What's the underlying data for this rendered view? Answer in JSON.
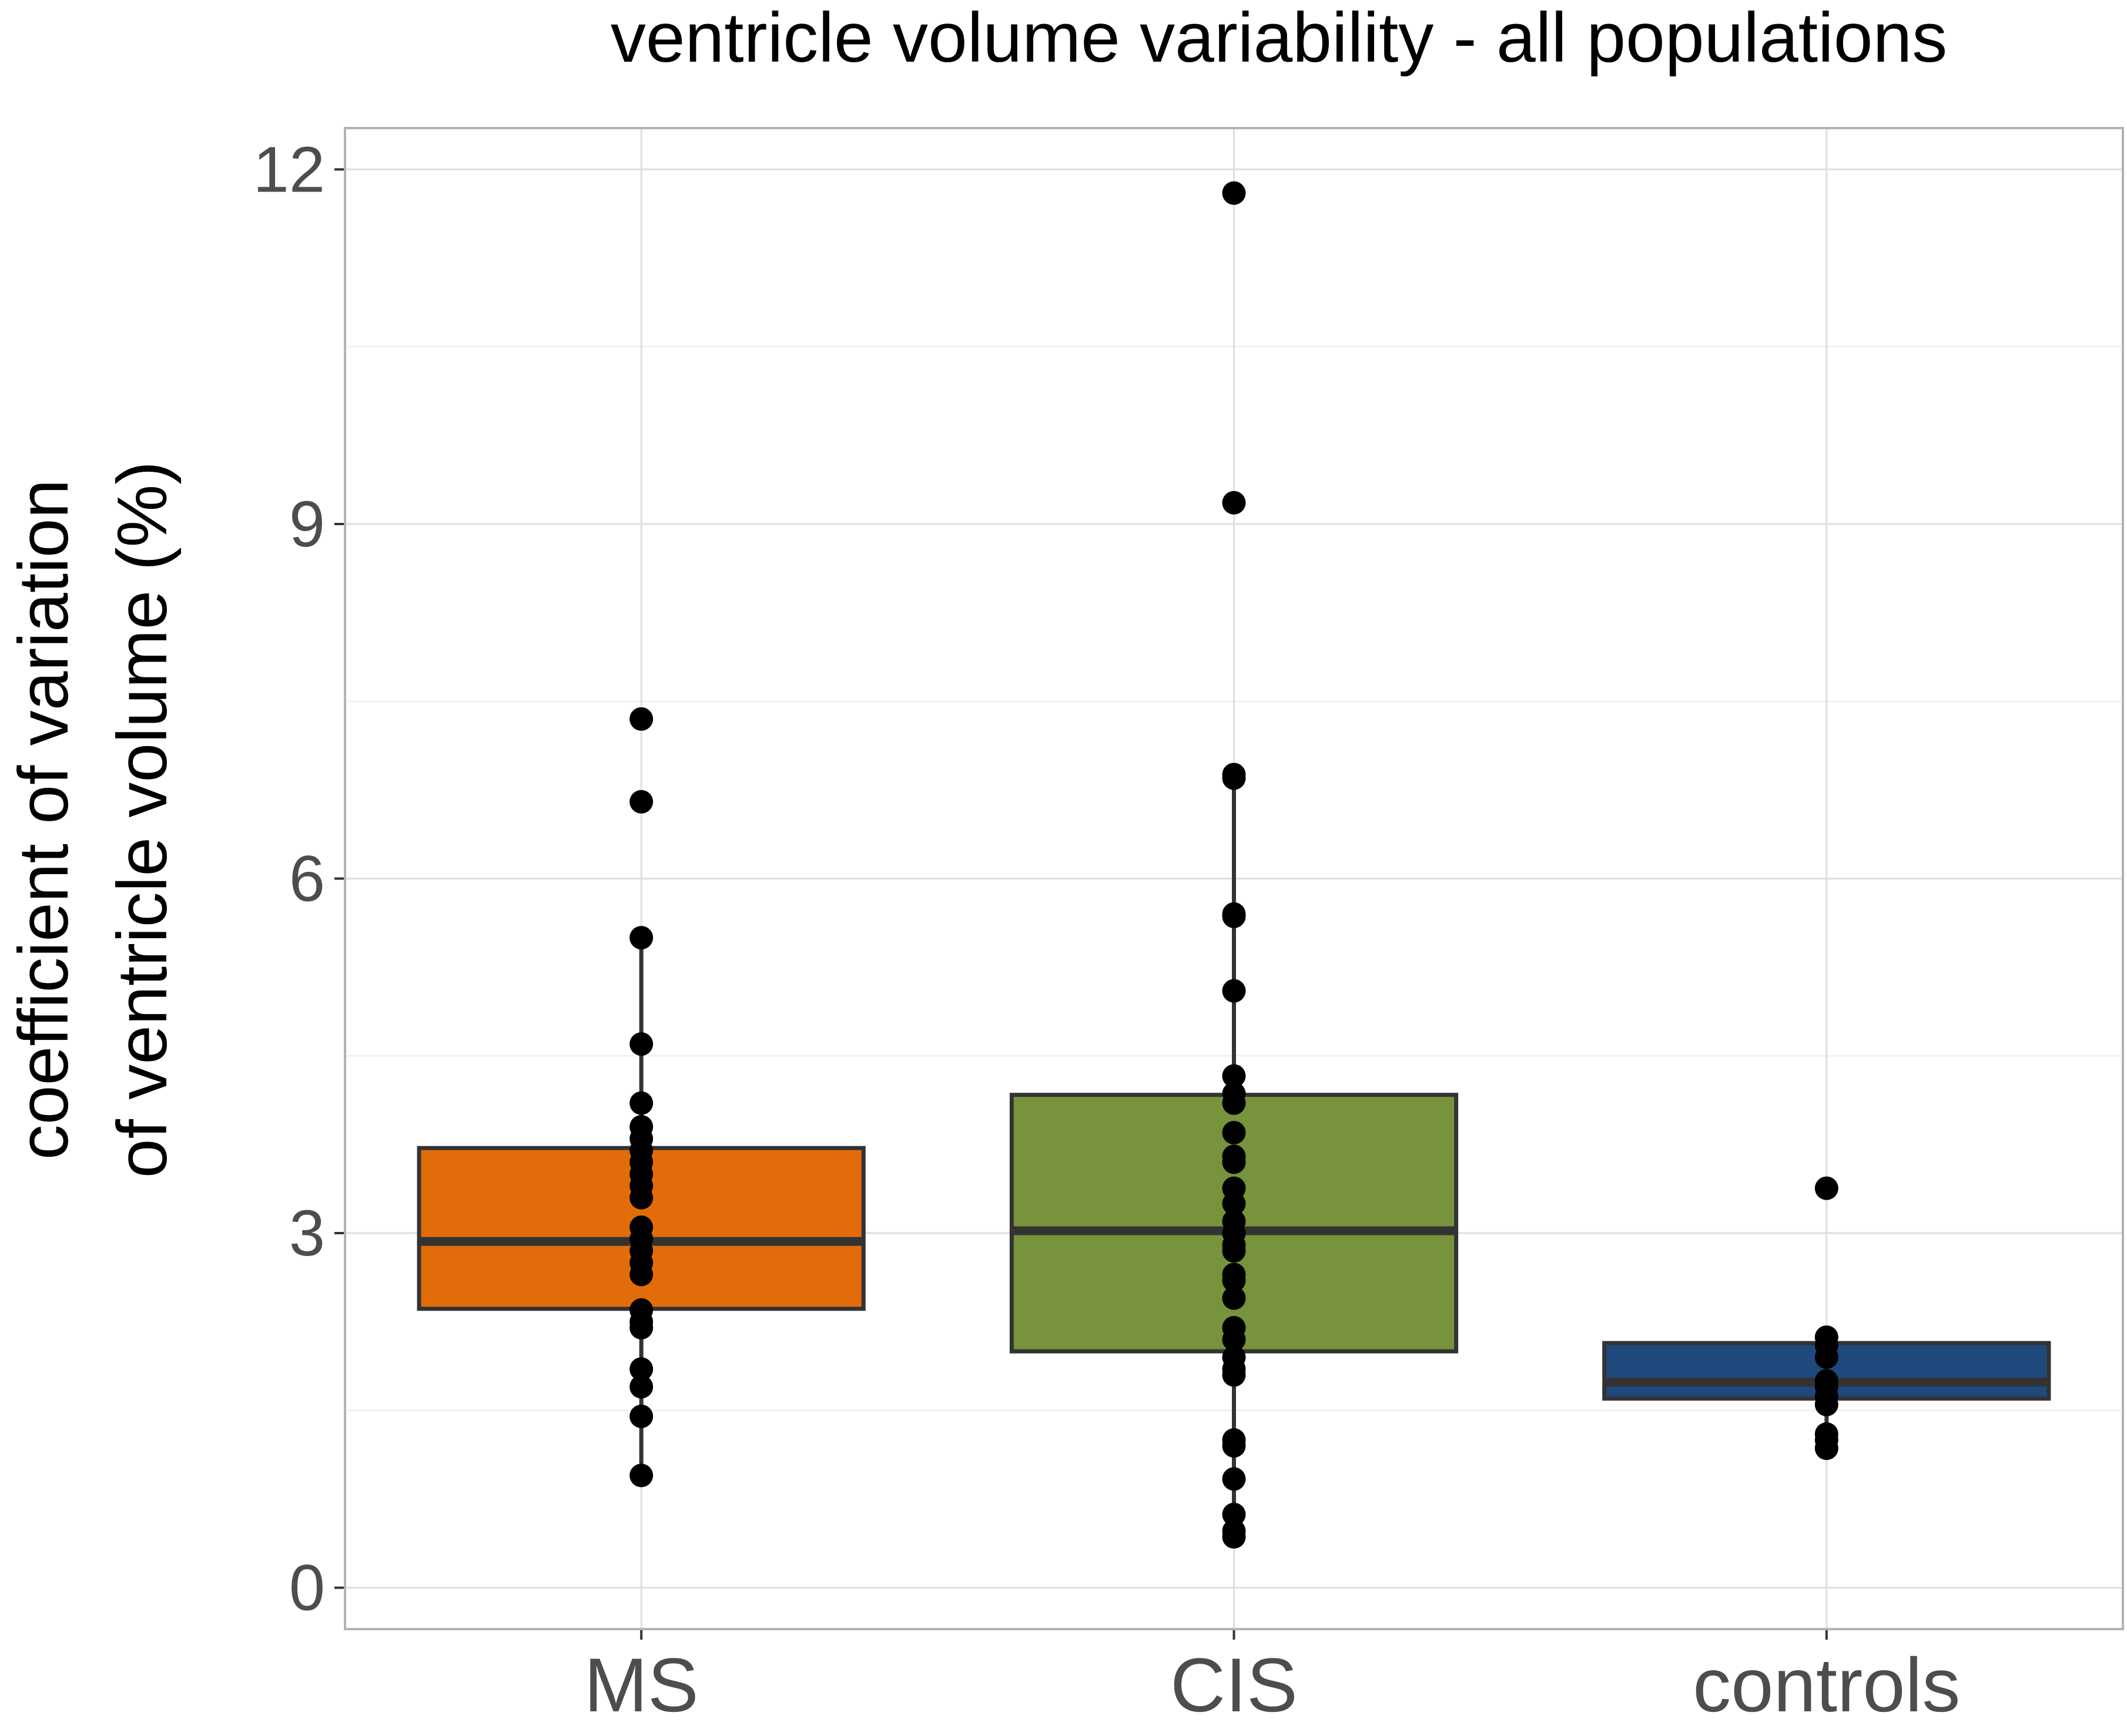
{
  "chart_data": {
    "type": "box",
    "title": "ventricle volume variability - all populations",
    "xlabel": "",
    "ylabel_lines": [
      "coefficient of variation",
      "of ventricle volume (%)"
    ],
    "ylim": [
      -0.35,
      12.35
    ],
    "yticks": [
      0,
      3,
      6,
      9,
      12
    ],
    "ytick_labels": [
      "0",
      "3",
      "6",
      "9",
      "12"
    ],
    "grid": true,
    "legend": "none",
    "categories": [
      "MS",
      "CIS",
      "controls"
    ],
    "groups": [
      {
        "category": "MS",
        "color": "#E36C0A",
        "q1": 2.36,
        "median": 2.93,
        "q3": 3.72,
        "whisker_low": 0.95,
        "whisker_high": 5.5,
        "points": [
          7.35,
          6.65,
          5.5,
          4.6,
          4.1,
          3.9,
          3.8,
          3.7,
          3.6,
          3.5,
          3.4,
          3.3,
          3.05,
          2.95,
          2.85,
          2.75,
          2.65,
          2.35,
          2.25,
          2.2,
          1.85,
          1.7,
          1.45,
          0.95
        ]
      },
      {
        "category": "CIS",
        "color": "#77933C",
        "q1": 2.0,
        "median": 3.02,
        "q3": 4.17,
        "whisker_low": 0.43,
        "whisker_high": 6.88,
        "points": [
          11.8,
          9.18,
          6.88,
          6.85,
          5.7,
          5.68,
          5.05,
          4.33,
          4.18,
          4.1,
          3.85,
          3.65,
          3.6,
          3.38,
          3.25,
          3.1,
          3.0,
          2.9,
          2.85,
          2.65,
          2.6,
          2.45,
          2.2,
          2.1,
          1.95,
          1.85,
          1.8,
          1.25,
          1.2,
          0.92,
          0.62,
          0.48,
          0.43
        ]
      },
      {
        "category": "controls",
        "color": "#1F497D",
        "q1": 1.6,
        "median": 1.74,
        "q3": 2.07,
        "whisker_low": 1.18,
        "whisker_high": 2.12,
        "points": [
          3.38,
          2.12,
          2.05,
          1.95,
          1.75,
          1.7,
          1.62,
          1.55,
          1.3,
          1.25,
          1.18
        ]
      }
    ]
  }
}
